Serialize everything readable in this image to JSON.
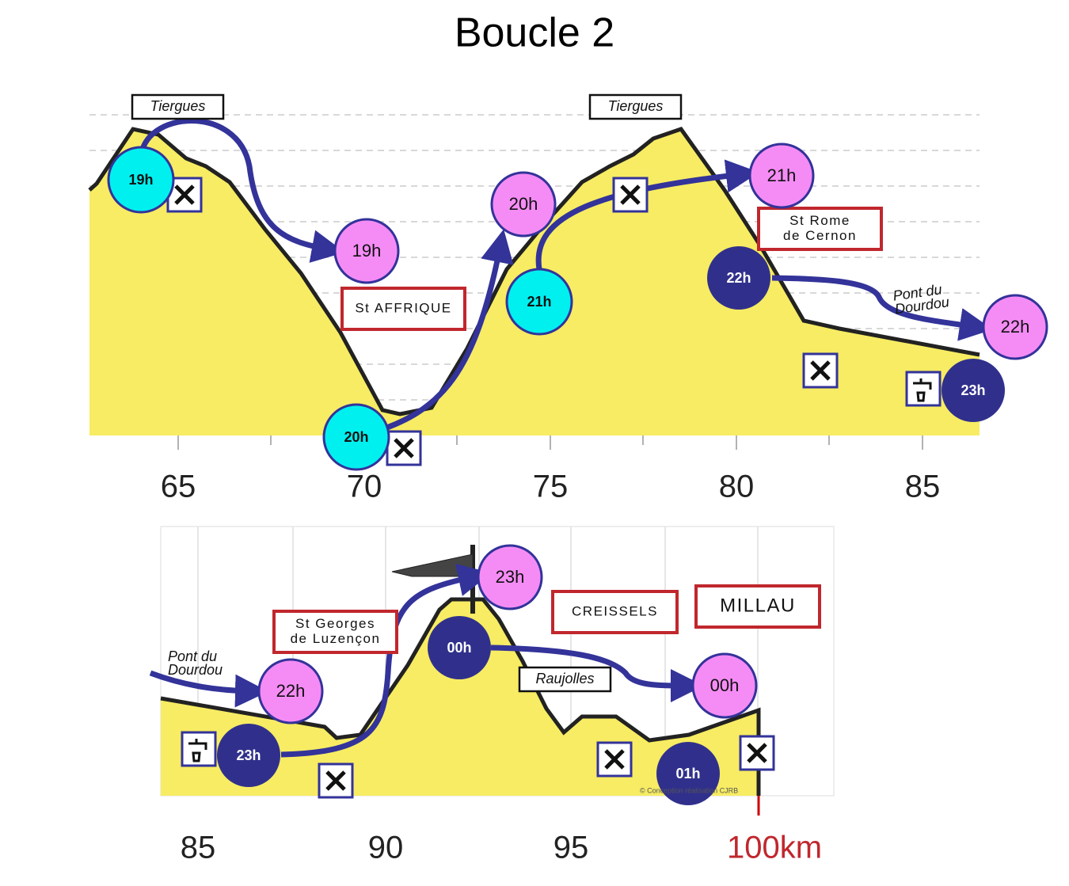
{
  "title": "Boucle 2",
  "panels": [
    {
      "x_labels": [
        "65",
        "70",
        "75",
        "80",
        "85"
      ],
      "places": [
        {
          "lines": [
            "Tiergues"
          ]
        },
        {
          "lines": [
            "St AFFRIQUE"
          ]
        },
        {
          "lines": [
            "Tiergues"
          ]
        },
        {
          "lines": [
            "St Rome",
            "de Cernon"
          ]
        },
        {
          "lines": [
            "Pont du",
            "Dourdou"
          ]
        }
      ],
      "times": [
        "19h",
        "19h",
        "20h",
        "20h",
        "21h",
        "21h",
        "22h",
        "22h",
        "23h"
      ]
    },
    {
      "x_labels": [
        "85",
        "90",
        "95",
        "100km"
      ],
      "places": [
        {
          "lines": [
            "Pont du",
            "Dourdou"
          ]
        },
        {
          "lines": [
            "St Georges",
            "de Luzençon"
          ]
        },
        {
          "lines": [
            "CREISSELS"
          ]
        },
        {
          "lines": [
            "MILLAU"
          ]
        },
        {
          "lines": [
            "Raujolles"
          ]
        }
      ],
      "times": [
        "22h",
        "23h",
        "23h",
        "00h",
        "00h",
        "01h"
      ],
      "credit": "© Conception réalisation CJRB"
    }
  ]
}
